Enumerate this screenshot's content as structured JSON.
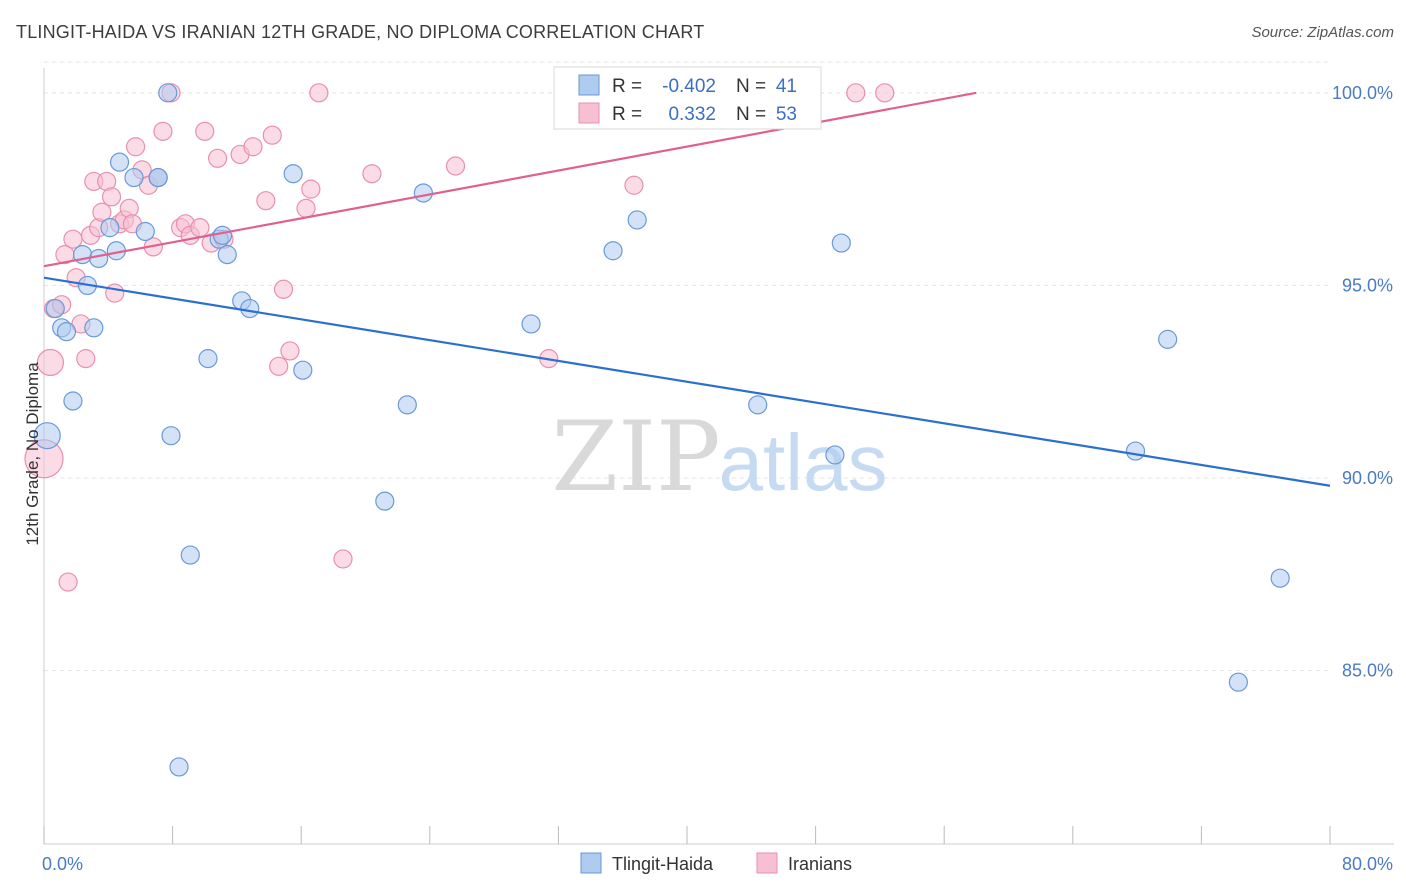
{
  "title": "TLINGIT-HAIDA VS IRANIAN 12TH GRADE, NO DIPLOMA CORRELATION CHART",
  "source": "Source: ZipAtlas.com",
  "watermark": {
    "zip": "ZIP",
    "atlas": "atlas"
  },
  "colors": {
    "blue_fill": "#aecbf0",
    "blue_stroke": "#6a9ad8",
    "blue_line": "#2b6fcf",
    "pink_fill": "#f7c0d2",
    "pink_stroke": "#e890ad",
    "pink_line": "#e0608e",
    "tick": "#4a7bc4",
    "grid": "#e4e4e4"
  },
  "legend": {
    "r_label": "R =",
    "n_label": "N =",
    "rows": [
      {
        "series": "Tlingit-Haida",
        "r": "-0.402",
        "n": "41"
      },
      {
        "series": "Iranians",
        "r": "0.332",
        "n": "53"
      }
    ]
  },
  "chart_data": {
    "type": "scatter",
    "title": "TLINGIT-HAIDA VS IRANIAN 12TH GRADE, NO DIPLOMA CORRELATION CHART",
    "xlabel": "",
    "ylabel": "12th Grade, No Diploma",
    "xlim": [
      0,
      80
    ],
    "ylim": [
      80.5,
      100.8
    ],
    "x_ticks": [
      0,
      80
    ],
    "x_tick_labels": [
      "0.0%",
      "80.0%"
    ],
    "y_ticks": [
      85,
      90,
      95,
      100
    ],
    "y_tick_labels": [
      "85.0%",
      "90.0%",
      "95.0%",
      "100.0%"
    ],
    "grid": true,
    "legend_position": "top-center",
    "series": [
      {
        "name": "Tlingit-Haida",
        "color": "#aecbf0",
        "trend": {
          "x": [
            0,
            80
          ],
          "y": [
            95.2,
            89.8
          ]
        },
        "points": [
          [
            0.2,
            91.1
          ],
          [
            0.7,
            94.4
          ],
          [
            1.1,
            93.9
          ],
          [
            1.4,
            93.8
          ],
          [
            1.8,
            92.0
          ],
          [
            2.4,
            95.8
          ],
          [
            2.7,
            95.0
          ],
          [
            3.1,
            93.9
          ],
          [
            3.4,
            95.7
          ],
          [
            4.1,
            96.5
          ],
          [
            4.5,
            95.9
          ],
          [
            4.7,
            98.2
          ],
          [
            5.6,
            97.8
          ],
          [
            6.3,
            96.4
          ],
          [
            7.1,
            97.8
          ],
          [
            7.7,
            100.0
          ],
          [
            7.9,
            91.1
          ],
          [
            8.4,
            82.5
          ],
          [
            9.1,
            88.0
          ],
          [
            10.2,
            93.1
          ],
          [
            10.9,
            96.2
          ],
          [
            11.1,
            96.3
          ],
          [
            11.4,
            95.8
          ],
          [
            12.3,
            94.6
          ],
          [
            12.8,
            94.4
          ],
          [
            15.5,
            97.9
          ],
          [
            16.1,
            92.8
          ],
          [
            21.2,
            89.4
          ],
          [
            22.6,
            91.9
          ],
          [
            23.6,
            97.4
          ],
          [
            30.3,
            94.0
          ],
          [
            35.4,
            95.9
          ],
          [
            36.9,
            96.7
          ],
          [
            44.4,
            91.9
          ],
          [
            49.2,
            90.6
          ],
          [
            49.6,
            96.1
          ],
          [
            67.9,
            90.7
          ],
          [
            69.9,
            93.6
          ],
          [
            74.3,
            84.7
          ],
          [
            76.9,
            87.4
          ],
          [
            7.1,
            97.8
          ]
        ]
      },
      {
        "name": "Iranians",
        "color": "#f7c0d2",
        "trend": {
          "x": [
            0,
            58
          ],
          "y": [
            95.5,
            100.0
          ]
        },
        "points": [
          [
            0.0,
            90.5
          ],
          [
            0.4,
            93.0
          ],
          [
            0.6,
            94.4
          ],
          [
            1.1,
            94.5
          ],
          [
            1.3,
            95.8
          ],
          [
            1.5,
            87.3
          ],
          [
            1.8,
            96.2
          ],
          [
            2.0,
            95.2
          ],
          [
            2.3,
            94.0
          ],
          [
            2.6,
            93.1
          ],
          [
            2.9,
            96.3
          ],
          [
            3.1,
            97.7
          ],
          [
            3.4,
            96.5
          ],
          [
            3.6,
            96.9
          ],
          [
            3.9,
            97.7
          ],
          [
            4.2,
            97.3
          ],
          [
            4.4,
            94.8
          ],
          [
            4.7,
            96.6
          ],
          [
            5.0,
            96.7
          ],
          [
            5.3,
            97.0
          ],
          [
            5.5,
            96.6
          ],
          [
            5.7,
            98.6
          ],
          [
            6.1,
            98.0
          ],
          [
            6.5,
            97.6
          ],
          [
            6.8,
            96.0
          ],
          [
            7.1,
            97.8
          ],
          [
            7.4,
            99.0
          ],
          [
            7.9,
            100.0
          ],
          [
            8.5,
            96.5
          ],
          [
            8.8,
            96.6
          ],
          [
            9.1,
            96.3
          ],
          [
            9.7,
            96.5
          ],
          [
            10.0,
            99.0
          ],
          [
            10.4,
            96.1
          ],
          [
            10.8,
            98.3
          ],
          [
            11.2,
            96.2
          ],
          [
            12.2,
            98.4
          ],
          [
            13.0,
            98.6
          ],
          [
            13.8,
            97.2
          ],
          [
            14.2,
            98.9
          ],
          [
            14.6,
            92.9
          ],
          [
            14.9,
            94.9
          ],
          [
            15.3,
            93.3
          ],
          [
            16.3,
            97.0
          ],
          [
            16.6,
            97.5
          ],
          [
            17.1,
            100.0
          ],
          [
            18.6,
            87.9
          ],
          [
            20.4,
            97.9
          ],
          [
            25.6,
            98.1
          ],
          [
            31.4,
            93.1
          ],
          [
            36.7,
            97.6
          ],
          [
            50.5,
            100.0
          ],
          [
            52.3,
            100.0
          ]
        ]
      }
    ]
  }
}
